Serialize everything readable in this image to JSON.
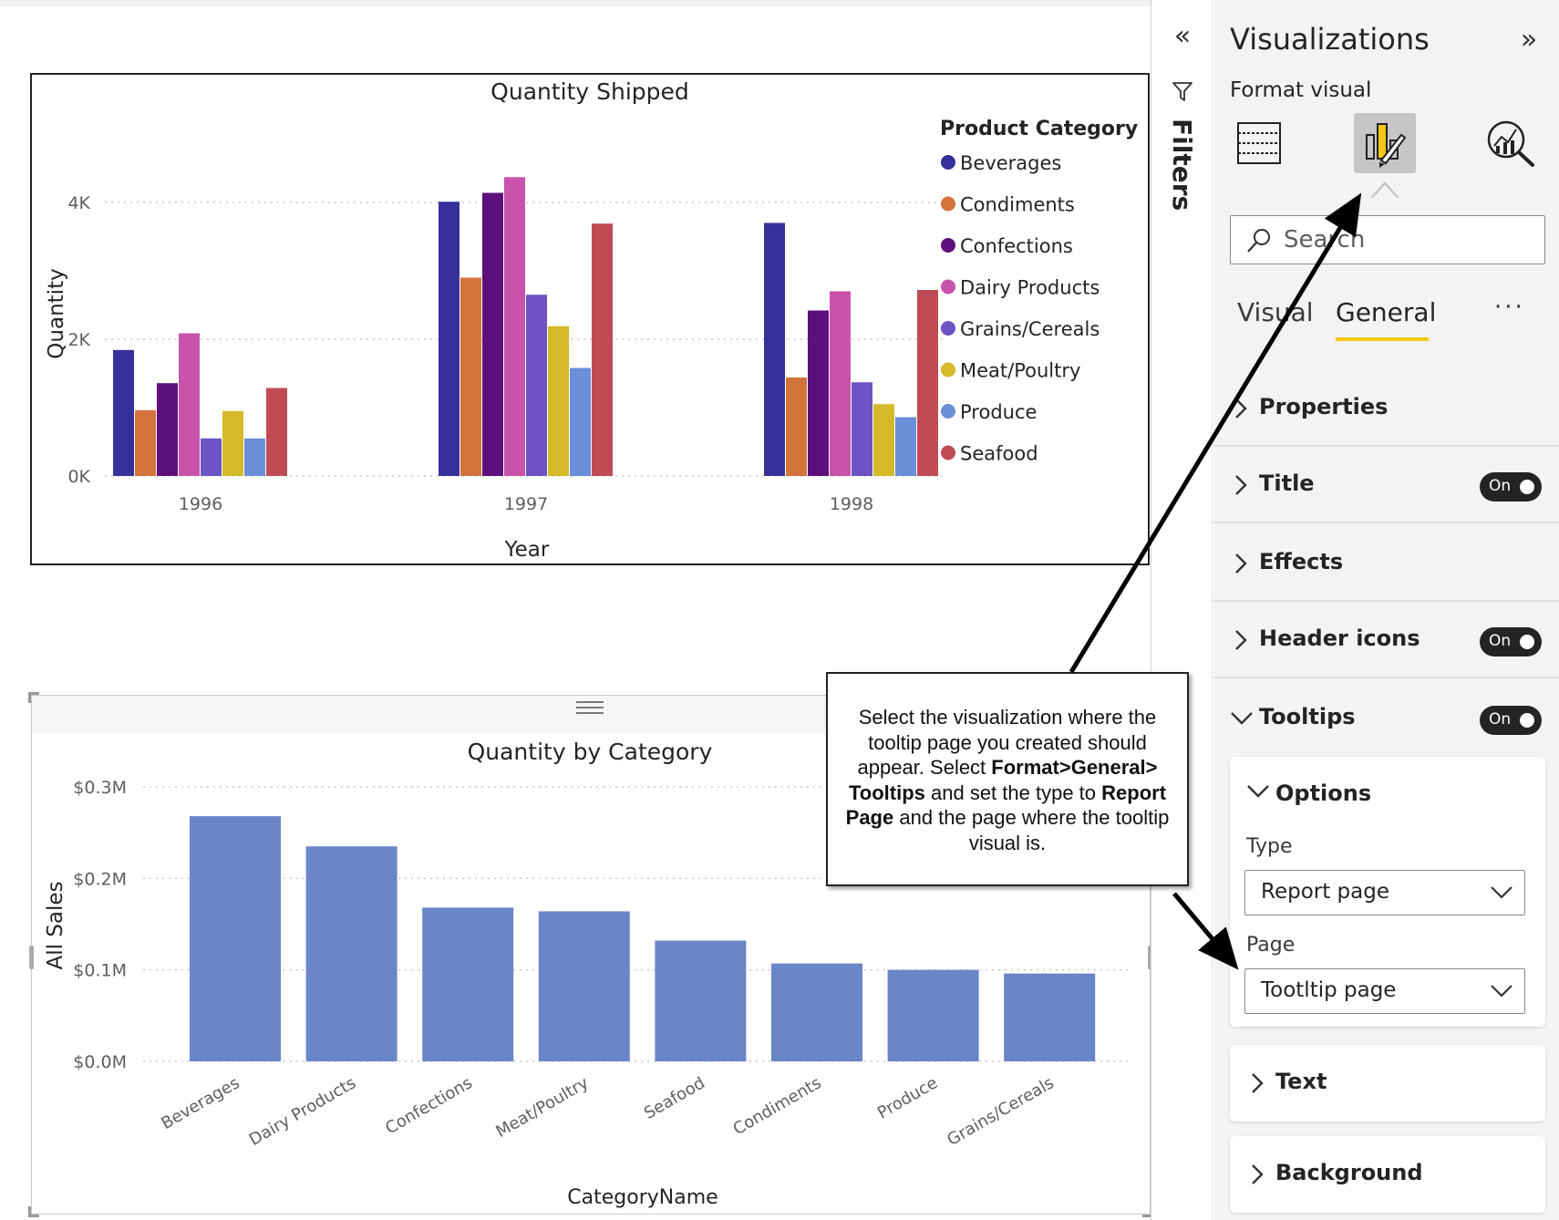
{
  "canvas": {
    "chart_data": [
      {
        "type": "bar",
        "title": "Quantity Shipped",
        "xlabel": "Year",
        "ylabel": "Quantity",
        "categories": [
          "1996",
          "1997",
          "1998"
        ],
        "yticks": [
          "0K",
          "2K",
          "4K"
        ],
        "ylim": [
          0,
          4800
        ],
        "grid": "horizontal dotted",
        "legend_title": "Product Category",
        "legend_position": "right",
        "series": [
          {
            "name": "Beverages",
            "color": "#38309a",
            "values": [
              1842,
              4010,
              3700
            ]
          },
          {
            "name": "Condiments",
            "color": "#d3733b",
            "values": [
              962,
              2900,
              1440
            ]
          },
          {
            "name": "Confections",
            "color": "#5d0f7b",
            "values": [
              1357,
              4140,
              2420
            ]
          },
          {
            "name": "Dairy Products",
            "color": "#c952ab",
            "values": [
              2086,
              4370,
              2700
            ]
          },
          {
            "name": "Grains/Cereals",
            "color": "#6d53c3",
            "values": [
              549,
              2650,
              1370
            ]
          },
          {
            "name": "Meat/Poultry",
            "color": "#d4b929",
            "values": [
              950,
              2190,
              1050
            ]
          },
          {
            "name": "Produce",
            "color": "#6b8fd8",
            "values": [
              549,
              1580,
              860
            ]
          },
          {
            "name": "Seafood",
            "color": "#bf4c55",
            "values": [
              1286,
              3690,
              2720
            ]
          }
        ]
      },
      {
        "type": "bar",
        "title": "Quantity by Category",
        "xlabel": "CategoryName",
        "ylabel": "All Sales",
        "yticks": [
          "$0.0M",
          "$0.1M",
          "$0.2M",
          "$0.3M"
        ],
        "ylim": [
          0,
          0.3
        ],
        "grid": "horizontal dotted",
        "color": "#6a86c8",
        "categories": [
          "Beverages",
          "Dairy Products",
          "Confections",
          "Meat/Poultry",
          "Seafood",
          "Condiments",
          "Produce",
          "Grains/Cereals"
        ],
        "values": [
          0.268,
          0.235,
          0.168,
          0.164,
          0.132,
          0.107,
          0.1,
          0.096
        ]
      }
    ]
  },
  "filters": {
    "label": "Filters",
    "collapse_icon": "«",
    "funnel_icon": "funnel-icon"
  },
  "pane": {
    "title": "Visualizations",
    "expand_icon": "»",
    "format_label": "Format visual",
    "icons": [
      "build-visual-icon",
      "format-paint-brush-icon",
      "analytics-magnifier-icon"
    ],
    "search_placeholder": "Search",
    "tabs": {
      "visual": "Visual",
      "general": "General",
      "more": "···"
    },
    "sections": [
      {
        "label": "Properties",
        "toggle": null,
        "expanded": false
      },
      {
        "label": "Title",
        "toggle": "On",
        "expanded": false
      },
      {
        "label": "Effects",
        "toggle": null,
        "expanded": false
      },
      {
        "label": "Header icons",
        "toggle": "On",
        "expanded": false
      },
      {
        "label": "Tooltips",
        "toggle": "On",
        "expanded": true
      }
    ],
    "options": {
      "label": "Options",
      "type_label": "Type",
      "type_value": "Report page",
      "page_label": "Page",
      "page_value": "Tootltip page"
    },
    "cards": [
      {
        "label": "Text"
      },
      {
        "label": "Background"
      }
    ]
  },
  "callout": {
    "t1": "Select the visualization where the tooltip page you created should appear. Select ",
    "b1": "Format>General> Tooltips",
    "t2": " and set the type to ",
    "b2": "Report Page",
    "t3": " and the page where the tooltip visual is."
  }
}
